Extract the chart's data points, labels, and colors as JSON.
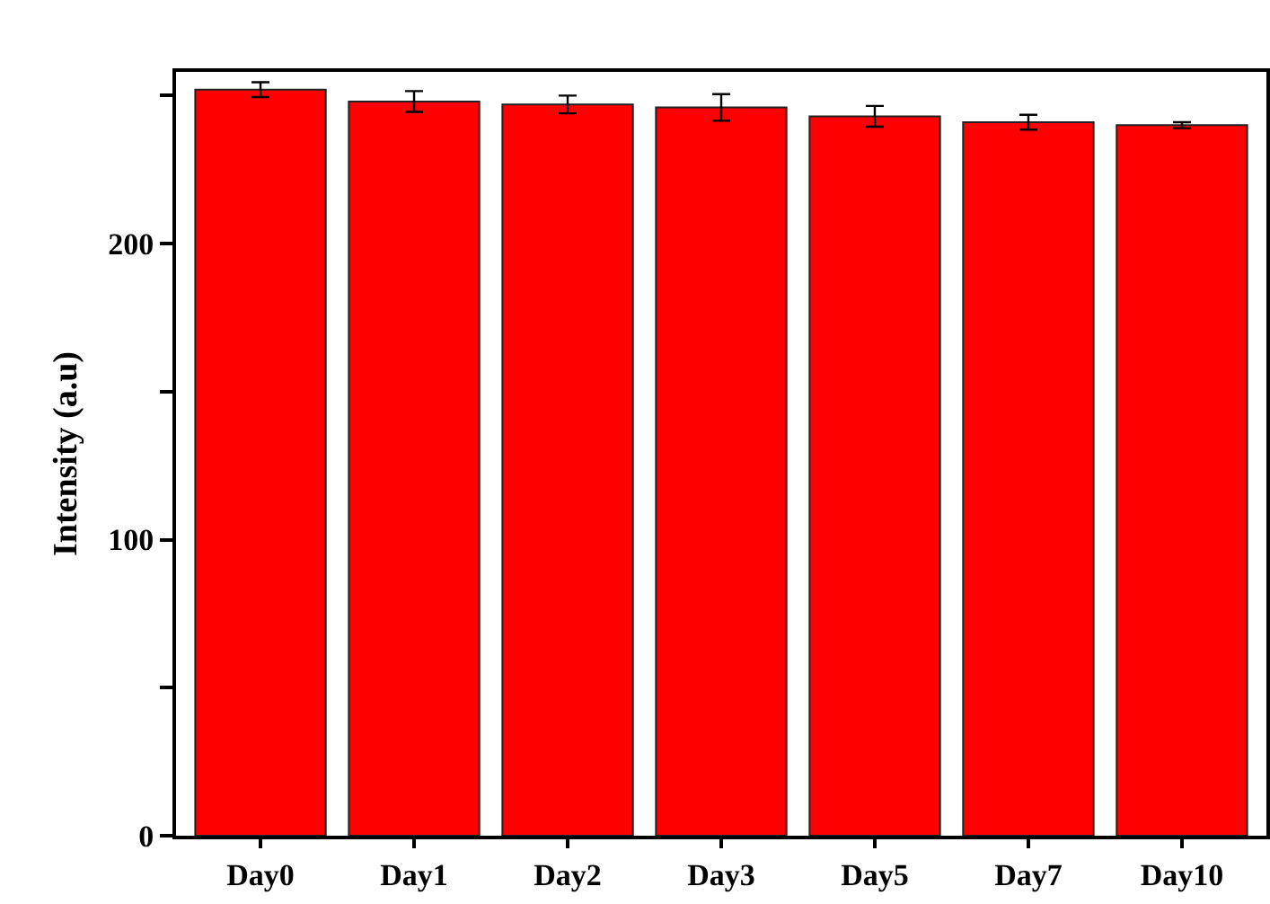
{
  "chart_data": {
    "type": "bar",
    "ylabel": "Intensity (a.u)",
    "categories": [
      "Day0",
      "Day1",
      "Day2",
      "Day3",
      "Day5",
      "Day7",
      "Day10"
    ],
    "values": [
      252,
      248,
      247,
      246,
      243,
      241,
      240
    ],
    "errors": [
      2.5,
      3.5,
      3,
      4.5,
      3.5,
      2.5,
      1
    ],
    "color": "#ff0000",
    "ylim": [
      0,
      258
    ],
    "yticks": [
      0,
      {
        "value": 50,
        "label": null
      },
      100,
      {
        "value": 150,
        "label": null
      },
      200,
      {
        "value": 250,
        "label": null
      }
    ],
    "grid": false
  }
}
